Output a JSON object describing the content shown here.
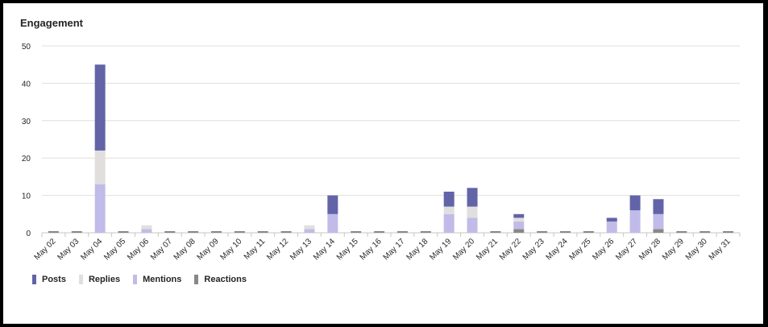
{
  "chart_data": {
    "type": "bar",
    "stacked": true,
    "title": "Engagement",
    "xlabel": "",
    "ylabel": "",
    "ylim": [
      0,
      50
    ],
    "yticks": [
      0,
      10,
      20,
      30,
      40,
      50
    ],
    "grid": true,
    "legend_position": "bottom-left",
    "categories": [
      "May 02",
      "May 03",
      "May 04",
      "May 05",
      "May 06",
      "May 07",
      "May 08",
      "May 09",
      "May 10",
      "May 11",
      "May 12",
      "May 13",
      "May 14",
      "May 15",
      "May 16",
      "May 17",
      "May 18",
      "May 19",
      "May 20",
      "May 21",
      "May 22",
      "May 23",
      "May 24",
      "May 25",
      "May 26",
      "May 27",
      "May 28",
      "May 29",
      "May 30",
      "May 31"
    ],
    "series": [
      {
        "name": "Reactions",
        "color": "#8a8886",
        "values": [
          0,
          0,
          0,
          0,
          0,
          0,
          0,
          0,
          0,
          0,
          0,
          0,
          0,
          0,
          0,
          0,
          0,
          0,
          0,
          0,
          1,
          0,
          0,
          0,
          0,
          0,
          1,
          0,
          0,
          0
        ]
      },
      {
        "name": "Mentions",
        "color": "#c1bbe9",
        "values": [
          0,
          0,
          13,
          0,
          1,
          0,
          0,
          0,
          0,
          0,
          0,
          1,
          5,
          0,
          0,
          0,
          0,
          5,
          4,
          0,
          2,
          0,
          0,
          0,
          3,
          6,
          4,
          0,
          0,
          0
        ]
      },
      {
        "name": "Replies",
        "color": "#e1dfdd",
        "values": [
          0,
          0,
          9,
          0,
          1,
          0,
          0,
          0,
          0,
          0,
          0,
          1,
          0,
          0,
          0,
          0,
          0,
          2,
          3,
          0,
          1,
          0,
          0,
          0,
          0,
          0,
          0,
          0,
          0,
          0
        ]
      },
      {
        "name": "Posts",
        "color": "#6264a7",
        "values": [
          0,
          0,
          23,
          0,
          0,
          0,
          0,
          0,
          0,
          0,
          0,
          0,
          5,
          0,
          0,
          0,
          0,
          4,
          5,
          0,
          1,
          0,
          0,
          0,
          1,
          4,
          4,
          0,
          0,
          0
        ]
      }
    ]
  },
  "legend": {
    "items": [
      {
        "label": "Posts",
        "color": "#6264a7"
      },
      {
        "label": "Replies",
        "color": "#e1dfdd"
      },
      {
        "label": "Mentions",
        "color": "#c1bbe9"
      },
      {
        "label": "Reactions",
        "color": "#8a8886"
      }
    ]
  }
}
